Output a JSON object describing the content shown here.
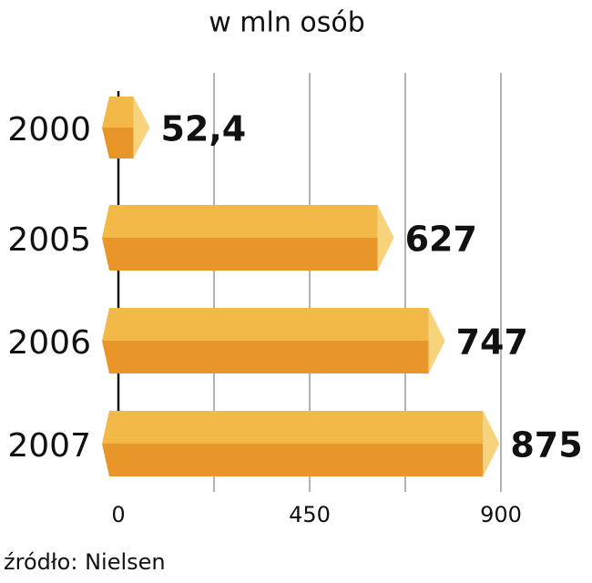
{
  "chart_data": {
    "type": "hbar",
    "title": "w mln osób",
    "source": "źródło: Nielsen",
    "categories": [
      "2000",
      "2005",
      "2006",
      "2007"
    ],
    "values": [
      52.4,
      627,
      747,
      875
    ],
    "value_labels": [
      "52,4",
      "627",
      "747",
      "875"
    ],
    "colors": {
      "top": "#f2b948",
      "bottom": "#e8952a",
      "tip": "#f7d37c"
    },
    "xlim": [
      0,
      900
    ],
    "xticks": [
      0,
      450,
      900
    ],
    "gridlines": [
      225,
      450,
      675,
      900
    ]
  }
}
